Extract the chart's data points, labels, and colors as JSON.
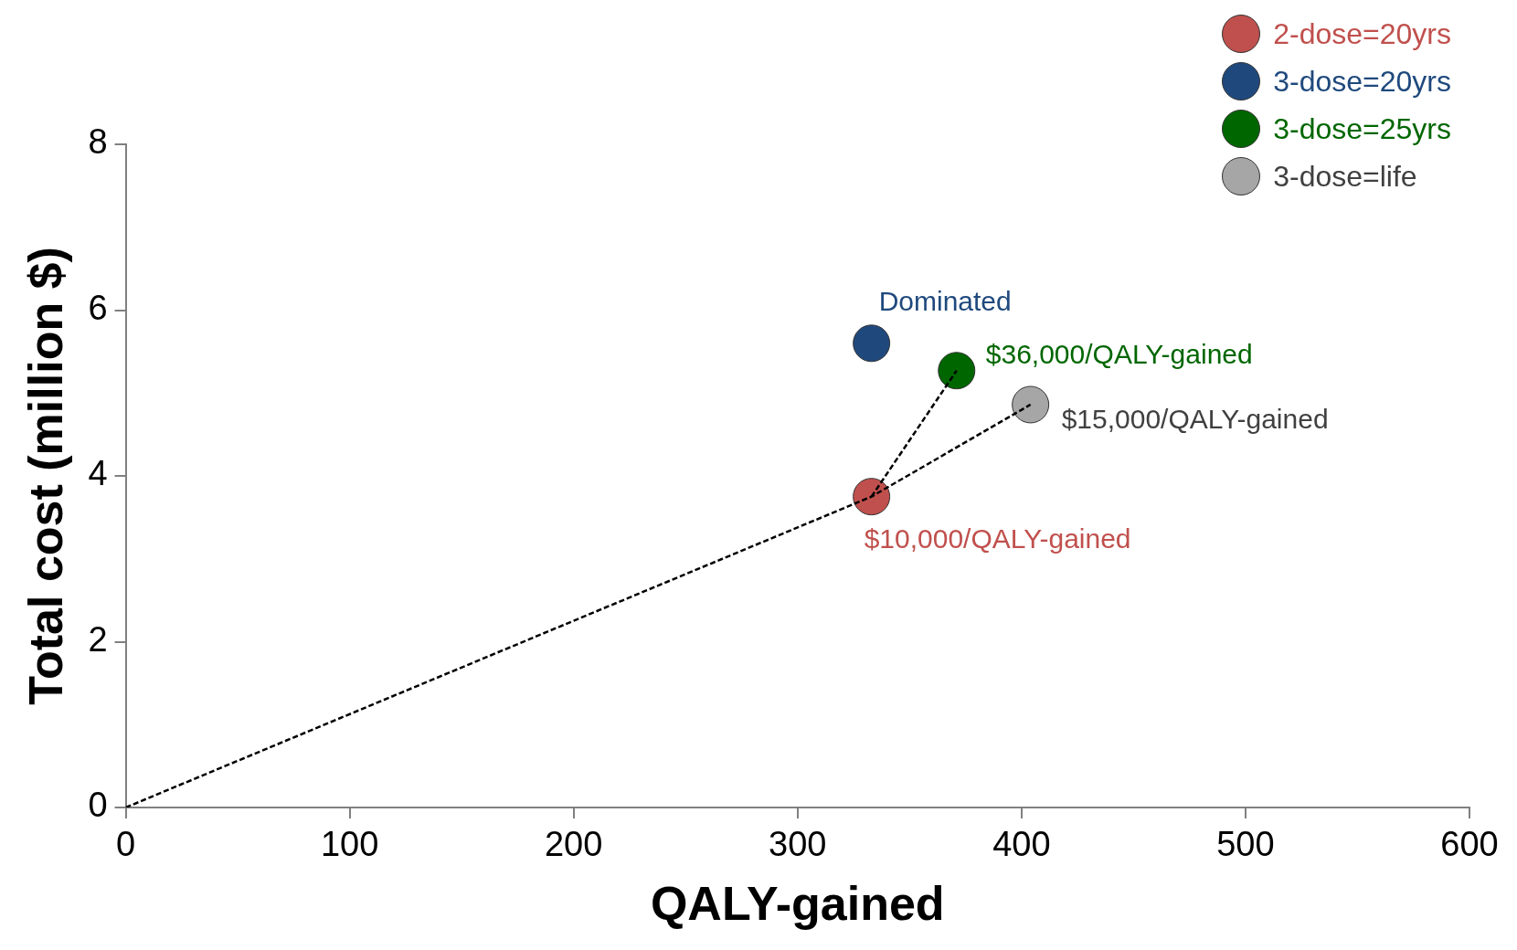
{
  "chart_data": {
    "type": "scatter",
    "xlabel": "QALY-gained",
    "ylabel": "Total cost (million $)",
    "xlim": [
      0,
      600
    ],
    "xticks": [
      0,
      100,
      200,
      300,
      400,
      500,
      600
    ],
    "ylim": [
      0,
      8
    ],
    "yticks": [
      0,
      2,
      4,
      6,
      8
    ],
    "grid": false,
    "legend": "top right",
    "marker": "circle",
    "series": [
      {
        "name": "2-dose=20yrs",
        "color": "#c0504d",
        "x": [
          333
        ],
        "values": [
          3.75
        ]
      },
      {
        "name": "3-dose=20yrs",
        "color": "#1f497d",
        "x": [
          333
        ],
        "values": [
          5.6
        ]
      },
      {
        "name": "3-dose=25yrs",
        "color": "#006600",
        "x": [
          371
        ],
        "values": [
          5.27
        ]
      },
      {
        "name": "3-dose=life",
        "color": "#a6a6a6",
        "x": [
          404
        ],
        "values": [
          4.86
        ]
      },
      {
        "type": "line",
        "color": "#000000",
        "line_style": "dashed",
        "marker": "none",
        "x": [
          0,
          333,
          404
        ],
        "values": [
          0,
          3.75,
          4.86
        ]
      },
      {
        "type": "line",
        "color": "#000000",
        "line_style": "dashed",
        "marker": "none",
        "x": [
          333,
          371
        ],
        "values": [
          3.75,
          5.27
        ]
      }
    ],
    "annotations": [
      {
        "text": "Dominated",
        "x": 333,
        "y": 5.6
      },
      {
        "text": "$36,000/QALY-gained",
        "x": 371,
        "y": 5.27
      },
      {
        "text": "$15,000/QALY-gained",
        "x": 404,
        "y": 4.86
      },
      {
        "text": "$10,000/QALY-gained",
        "x": 333,
        "y": 3.75
      }
    ]
  }
}
